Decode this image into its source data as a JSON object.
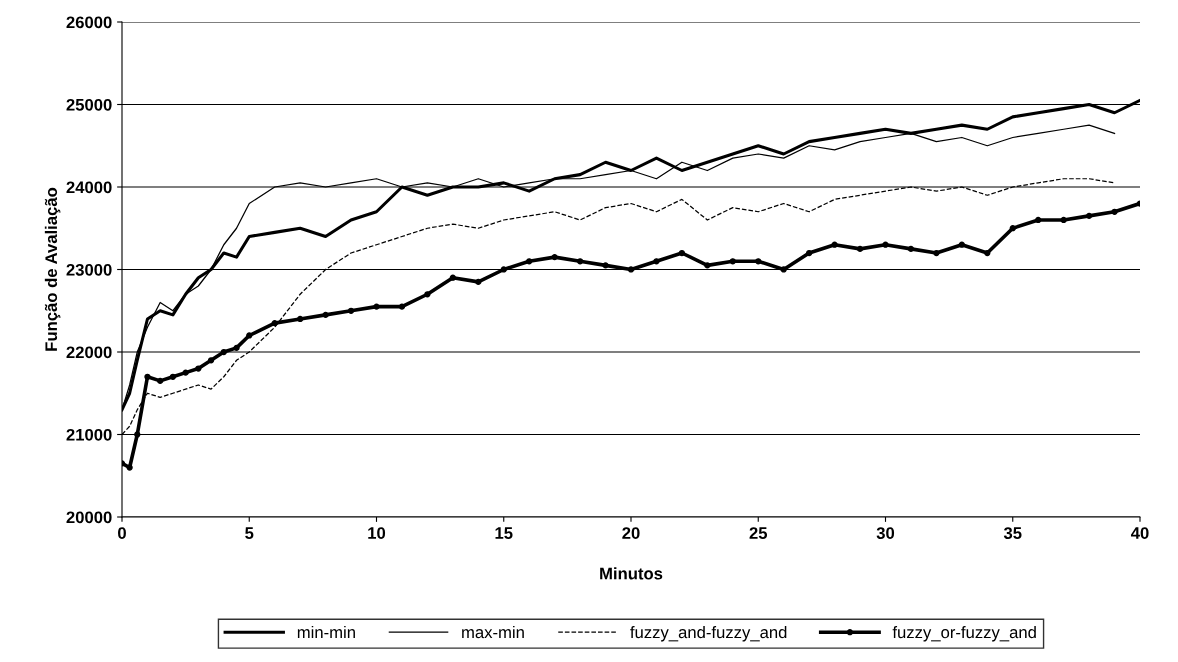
{
  "chart_data": {
    "type": "line",
    "xlabel": "Minutos",
    "ylabel": "Função de Avaliação",
    "x": [
      0,
      0.3,
      0.6,
      1,
      1.5,
      2,
      2.5,
      3,
      3.5,
      4,
      4.5,
      5,
      6,
      7,
      8,
      9,
      10,
      11,
      12,
      13,
      14,
      15,
      16,
      17,
      18,
      19,
      20,
      21,
      22,
      23,
      24,
      25,
      26,
      27,
      28,
      29,
      30,
      31,
      32,
      33,
      34,
      35,
      36,
      37,
      38,
      39,
      40
    ],
    "series": [
      {
        "name": "min-min",
        "color": "#000000",
        "line_style": "solid",
        "marker": "none",
        "values": [
          21300,
          21500,
          21900,
          22400,
          22500,
          22450,
          22700,
          22900,
          23000,
          23200,
          23150,
          23400,
          23450,
          23500,
          23400,
          23600,
          23700,
          24000,
          23900,
          24000,
          24000,
          24050,
          23950,
          24100,
          24150,
          24300,
          24200,
          24350,
          24200,
          24300,
          24400,
          24500,
          24400,
          24550,
          24600,
          24650,
          24700,
          24650,
          24700,
          24750,
          24700,
          24850,
          24900,
          24950,
          25000,
          24900,
          25050
        ]
      },
      {
        "name": "max-min",
        "color": "#000000",
        "line_style": "solid",
        "marker": "none",
        "values": [
          21300,
          21600,
          22000,
          22300,
          22600,
          22500,
          22700,
          22800,
          23000,
          23300,
          23500,
          23800,
          24000,
          24050,
          24000,
          24050,
          24100,
          24000,
          24050,
          24000,
          24100,
          24000,
          24050,
          24100,
          24100,
          24150,
          24200,
          24100,
          24300,
          24200,
          24350,
          24400,
          24350,
          24500,
          24450,
          24550,
          24600,
          24650,
          24550,
          24600,
          24500,
          24600,
          24650,
          24700,
          24750,
          24650,
          null
        ]
      },
      {
        "name": "fuzzy_and-fuzzy_and",
        "color": "#000000",
        "line_style": "dashed",
        "marker": "none",
        "values": [
          21000,
          21100,
          21300,
          21500,
          21450,
          21500,
          21550,
          21600,
          21550,
          21700,
          21900,
          22000,
          22300,
          22700,
          23000,
          23200,
          23300,
          23400,
          23500,
          23550,
          23500,
          23600,
          23650,
          23700,
          23600,
          23750,
          23800,
          23700,
          23850,
          23600,
          23750,
          23700,
          23800,
          23700,
          23850,
          23900,
          23950,
          24000,
          23950,
          24000,
          23900,
          24000,
          24050,
          24100,
          24100,
          24050,
          null
        ]
      },
      {
        "name": "fuzzy_or-fuzzy_and",
        "color": "#000000",
        "line_style": "solid",
        "marker": "circle",
        "values": [
          20650,
          20600,
          21000,
          21700,
          21650,
          21700,
          21750,
          21800,
          21900,
          22000,
          22050,
          22200,
          22350,
          22400,
          22450,
          22500,
          22550,
          22550,
          22700,
          22900,
          22850,
          23000,
          23100,
          23150,
          23100,
          23050,
          23000,
          23100,
          23200,
          23050,
          23100,
          23100,
          23000,
          23200,
          23300,
          23250,
          23300,
          23250,
          23200,
          23300,
          23200,
          23500,
          23600,
          23600,
          23650,
          23700,
          23800
        ]
      }
    ],
    "xlim": [
      0,
      40
    ],
    "xticks": [
      0,
      5,
      10,
      15,
      20,
      25,
      30,
      35,
      40
    ],
    "ylim": [
      20000,
      26000
    ],
    "yticks": [
      20000,
      21000,
      22000,
      23000,
      24000,
      25000,
      26000
    ],
    "grid": "y",
    "legend": "bottom"
  }
}
